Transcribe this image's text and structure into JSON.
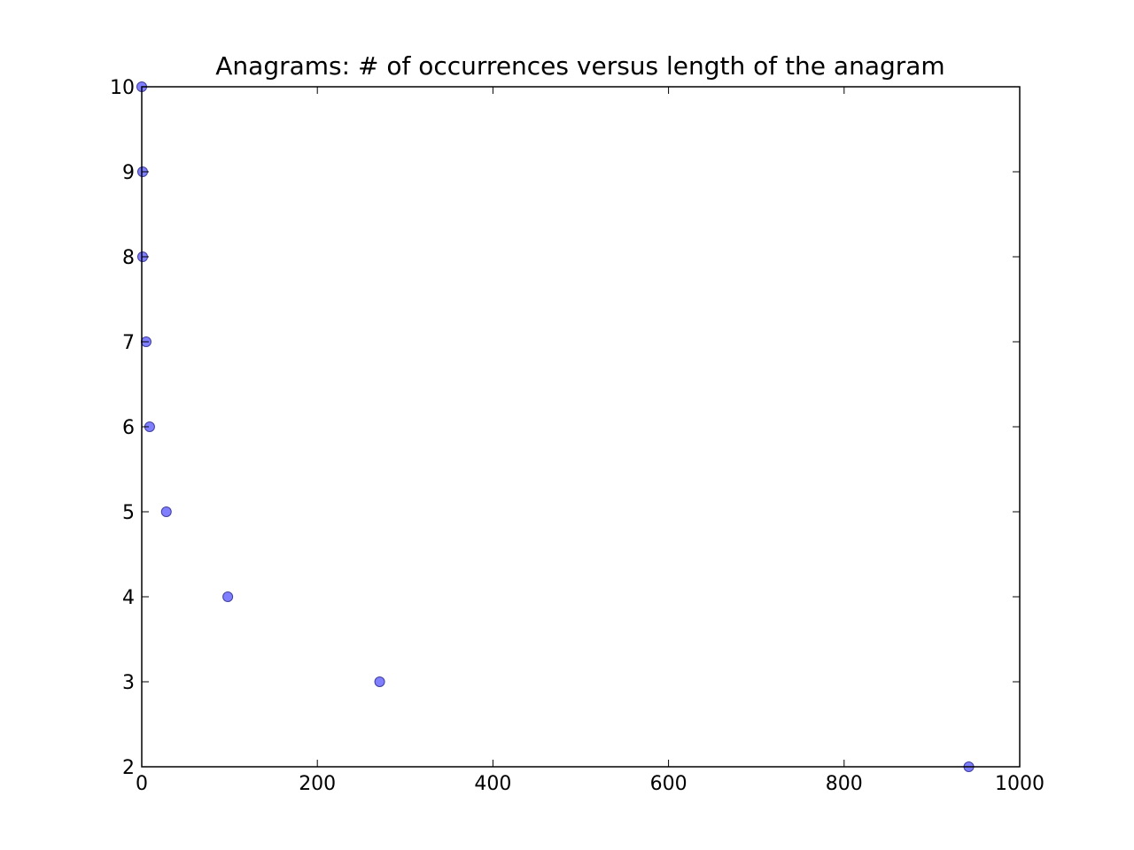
{
  "chart_data": {
    "type": "scatter",
    "title": "Anagrams: # of occurrences versus length of the anagram",
    "xlabel": "",
    "ylabel": "",
    "xlim": [
      0,
      1000
    ],
    "ylim": [
      2,
      10
    ],
    "x_ticks": [
      0,
      200,
      400,
      600,
      800,
      1000
    ],
    "y_ticks": [
      2,
      3,
      4,
      5,
      6,
      7,
      8,
      9,
      10
    ],
    "grid": false,
    "legend": "none",
    "marker_color": "#7f7fff",
    "marker_edge_color": "#3f3f9f",
    "series": [
      {
        "points": [
          {
            "x": 0,
            "y": 10
          },
          {
            "x": 1,
            "y": 9
          },
          {
            "x": 1,
            "y": 8
          },
          {
            "x": 5,
            "y": 7
          },
          {
            "x": 9,
            "y": 6
          },
          {
            "x": 28,
            "y": 5
          },
          {
            "x": 98,
            "y": 4
          },
          {
            "x": 271,
            "y": 3
          },
          {
            "x": 942,
            "y": 2
          }
        ]
      }
    ]
  }
}
